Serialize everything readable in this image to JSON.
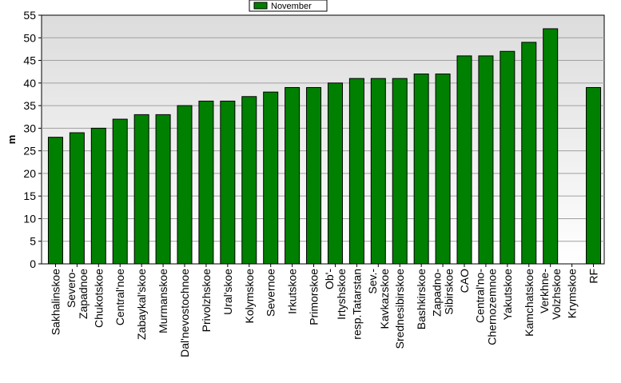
{
  "chart_data": {
    "type": "bar",
    "ylabel": "m",
    "ylim": [
      0,
      55
    ],
    "ytick_step": 5,
    "grid": true,
    "legend_placement": "top-center",
    "series": [
      {
        "name": "November",
        "color": "#008000",
        "values": [
          28,
          29,
          30,
          32,
          33,
          33,
          35,
          36,
          36,
          37,
          38,
          39,
          39,
          40,
          41,
          41,
          41,
          42,
          42,
          46,
          46,
          47,
          49,
          52,
          null,
          39
        ]
      }
    ],
    "categories": [
      [
        "Sakhalinskoe"
      ],
      [
        "Severo-",
        "Zapadnoe"
      ],
      [
        "Chukotskoe"
      ],
      [
        "Central'noe"
      ],
      [
        "Zabaykal'skoe"
      ],
      [
        "Murmanskoe"
      ],
      [
        "Dal'nevostochnoe"
      ],
      [
        "Privolzhskoe"
      ],
      [
        "Ural'skoe"
      ],
      [
        "Kolymskoe"
      ],
      [
        "Severnoe"
      ],
      [
        "Irkutskoe"
      ],
      [
        "Primorskoe"
      ],
      [
        "Ob'-",
        "Irtyshskoe"
      ],
      [
        "resp.Tatarstan"
      ],
      [
        "Sev.-",
        "Kavkazskoe"
      ],
      [
        "Srednesibirskoe"
      ],
      [
        "Bashkirskoe"
      ],
      [
        "Zapadno-",
        "Sibirskoe"
      ],
      [
        "CAO"
      ],
      [
        "Central'no-",
        "Chernozemnoe"
      ],
      [
        "Yakutskoe"
      ],
      [
        "Kamchatskoe"
      ],
      [
        "Verkhne-",
        "Volzhskoe"
      ],
      [
        "Krymskoe"
      ],
      [
        "RF"
      ]
    ]
  }
}
